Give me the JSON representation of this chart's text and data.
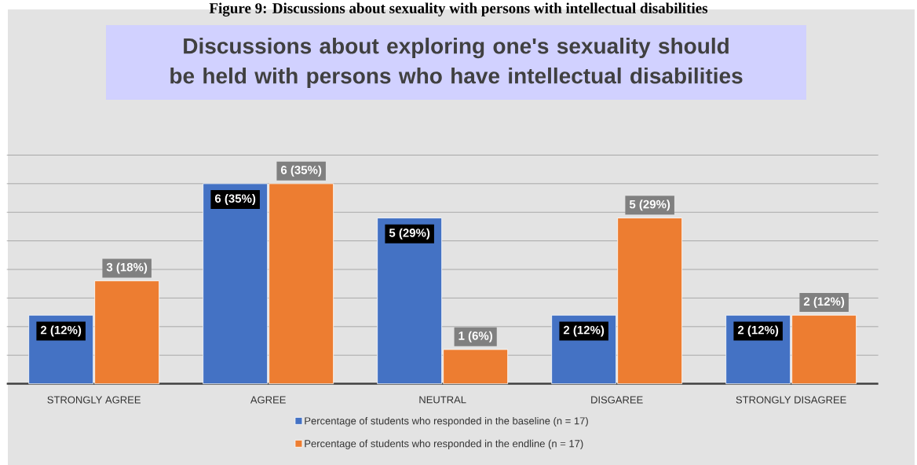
{
  "chart_data": {
    "type": "bar",
    "title": "Discussions about exploring one's sexuality should be held with persons who have intellectual disabilities",
    "annotations": [
      "Figure 9: Discussions about sexuality with persons with intellectual disabilities"
    ],
    "categories": [
      "STRONGLY AGREE",
      "AGREE",
      "NEUTRAL",
      "DISGAREE",
      "STRONGLY DISAGREE"
    ],
    "series": [
      {
        "name": "Percentage of students who responded in the baseline (n = 17)",
        "color": "#4472c4",
        "values": [
          12,
          35,
          29,
          12,
          12
        ],
        "value_labels": [
          "2 (12%)",
          "6 (35%)",
          "5 (29%)",
          "2 (12%)",
          "2 (12%)"
        ]
      },
      {
        "name": "Percentage of students who responded in the endline (n = 17)",
        "color": "#ed7d31",
        "values": [
          18,
          35,
          6,
          29,
          12
        ],
        "value_labels": [
          "3 (18%)",
          "6 (35%)",
          "1 (6%)",
          "5 (29%)",
          "2 (12%)"
        ]
      }
    ],
    "grid": "y",
    "legend": "bottom"
  }
}
